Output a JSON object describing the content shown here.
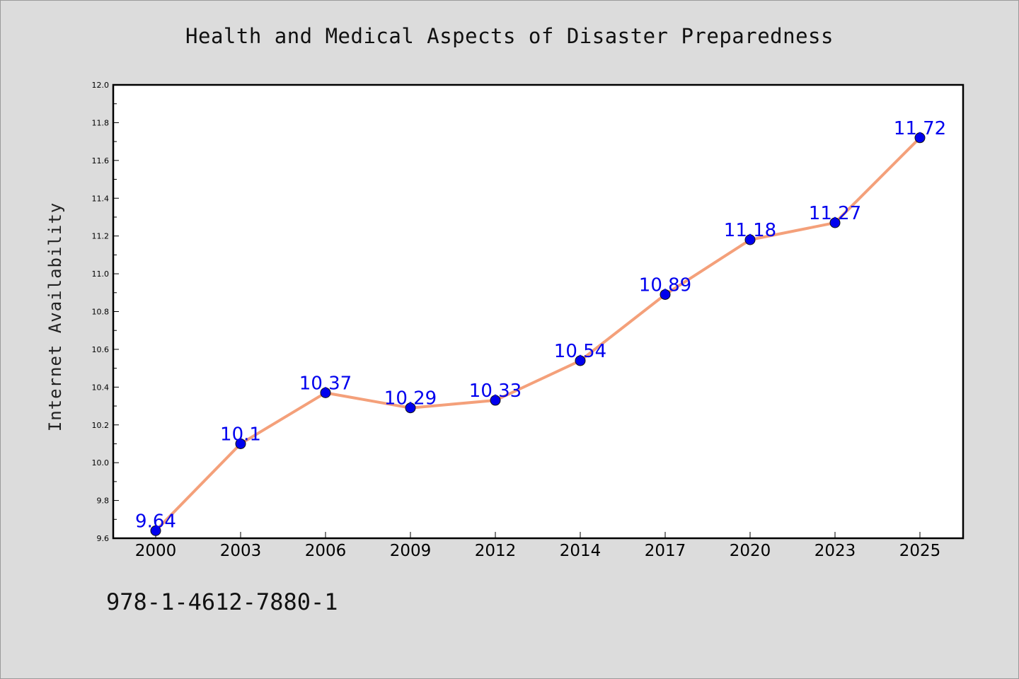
{
  "chart_data": {
    "type": "line",
    "title": "Health and Medical Aspects of Disaster Preparedness",
    "xlabel": "",
    "ylabel": "Internet Availability",
    "categories": [
      "2000",
      "2003",
      "2006",
      "2009",
      "2012",
      "2014",
      "2017",
      "2020",
      "2023",
      "2025"
    ],
    "series": [
      {
        "values": [
          9.64,
          10.1,
          10.37,
          10.29,
          10.33,
          10.54,
          10.89,
          11.18,
          11.27,
          11.72
        ],
        "data_labels": [
          "9.64",
          "10.1",
          "10.37",
          "10.29",
          "10.33",
          "10.54",
          "10.89",
          "11.18",
          "11.27",
          "11.72"
        ],
        "line_color": "#f4a07a",
        "marker_color": "#0000ee",
        "label_color": "#0000ee"
      }
    ],
    "ylim": [
      9.6,
      12.0
    ],
    "yticks": [
      "9.6",
      "9.8",
      "10.0",
      "10.2",
      "10.4",
      "10.6",
      "10.8",
      "11.0",
      "11.2",
      "11.4",
      "11.6",
      "11.8",
      "12.0"
    ],
    "grid": false,
    "legend": "none"
  },
  "footer": {
    "identifier": "978-1-4612-7880-1"
  }
}
